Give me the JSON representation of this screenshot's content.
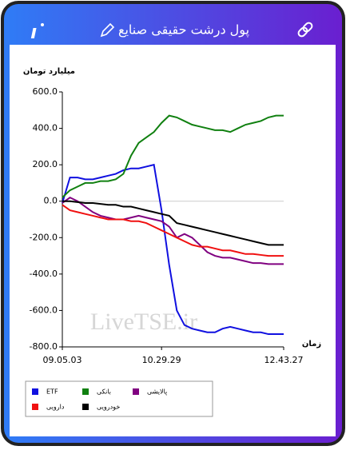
{
  "chart_data": {
    "type": "line",
    "title": "پول درشت حقیقی صنایع",
    "y_label": "میلیارد تومان",
    "x_label": "زمان",
    "watermark": "LiveTSE.ir",
    "categories": [
      "09.05.03",
      null,
      null,
      null,
      null,
      null,
      null,
      null,
      null,
      null,
      null,
      null,
      null,
      "10.29.29",
      null,
      null,
      null,
      null,
      null,
      null,
      null,
      null,
      null,
      null,
      null,
      null,
      null,
      null,
      null,
      "12.43.27"
    ],
    "ylim": [
      -800,
      600
    ],
    "yticks": [
      {
        "value": 600,
        "label": "600.0"
      },
      {
        "value": 400,
        "label": "400.0"
      },
      {
        "value": 200,
        "label": "200.0"
      },
      {
        "value": 0,
        "label": "0.0"
      },
      {
        "value": -200,
        "label": "-200.0"
      },
      {
        "value": -400,
        "label": "-400.0"
      },
      {
        "value": -600,
        "label": "-600.0"
      },
      {
        "value": -800,
        "label": "-800.0"
      }
    ],
    "series": [
      {
        "name": "ETF",
        "color": "#1010e0",
        "values": [
          -10,
          130,
          130,
          120,
          120,
          130,
          140,
          150,
          170,
          180,
          180,
          190,
          200,
          -50,
          -350,
          -600,
          -680,
          -700,
          -710,
          -720,
          -720,
          -700,
          -690,
          -700,
          -710,
          -720,
          -720,
          -730,
          -730,
          -730
        ]
      },
      {
        "name": "بانکی",
        "color": "#108010",
        "values": [
          20,
          60,
          80,
          100,
          100,
          110,
          110,
          120,
          150,
          250,
          320,
          350,
          380,
          430,
          470,
          460,
          440,
          420,
          410,
          400,
          390,
          390,
          380,
          400,
          420,
          430,
          440,
          460,
          470,
          470
        ]
      },
      {
        "name": "پالایشی",
        "color": "#800080",
        "values": [
          -10,
          20,
          0,
          -30,
          -60,
          -80,
          -90,
          -100,
          -100,
          -90,
          -80,
          -90,
          -100,
          -110,
          -140,
          -200,
          -180,
          -200,
          -240,
          -280,
          -300,
          -310,
          -310,
          -320,
          -330,
          -340,
          -340,
          -345,
          -345,
          -345
        ]
      },
      {
        "name": "دارویی",
        "color": "#f01010",
        "values": [
          -20,
          -50,
          -60,
          -70,
          -80,
          -90,
          -100,
          -100,
          -100,
          -110,
          -110,
          -120,
          -140,
          -160,
          -180,
          -200,
          -220,
          -240,
          -250,
          -250,
          -260,
          -270,
          -270,
          -280,
          -290,
          -290,
          -295,
          -300,
          -300,
          -300
        ]
      },
      {
        "name": "خودرویی",
        "color": "#000000",
        "values": [
          0,
          0,
          -5,
          -10,
          -10,
          -15,
          -20,
          -20,
          -30,
          -30,
          -40,
          -50,
          -60,
          -70,
          -80,
          -120,
          -130,
          -140,
          -150,
          -160,
          -170,
          -180,
          -190,
          -200,
          -210,
          -220,
          -230,
          -240,
          -240,
          -240
        ]
      }
    ]
  }
}
